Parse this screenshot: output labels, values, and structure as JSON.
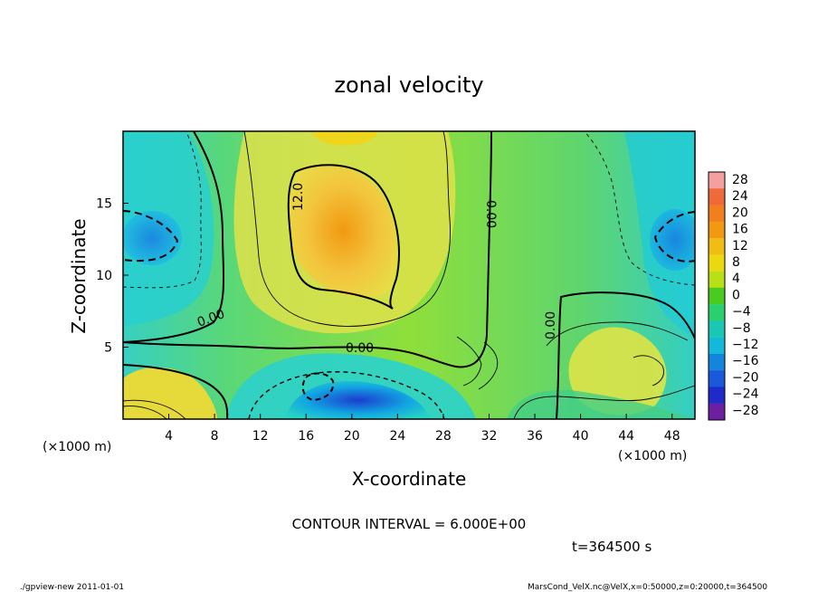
{
  "chart_data": {
    "type": "heatmap",
    "title": "zonal velocity",
    "xlabel": "X-coordinate",
    "ylabel": "Z-coordinate",
    "x_unit_left": "(×1000 m)",
    "x_unit_right": "(×1000 m)",
    "xlim": [
      0,
      50
    ],
    "ylim": [
      0,
      20
    ],
    "x_ticks": [
      4,
      8,
      12,
      16,
      20,
      24,
      28,
      32,
      36,
      40,
      44,
      48
    ],
    "y_ticks": [
      5,
      10,
      15
    ],
    "contour_labels": [
      "12.0",
      "0.00",
      "0.00",
      "0.00",
      "0.00"
    ],
    "colorbar_labels": [
      "28",
      "24",
      "20",
      "16",
      "12",
      "8",
      "4",
      "0",
      "−4",
      "−8",
      "−12",
      "−16",
      "−20",
      "−24",
      "−28"
    ],
    "colorbar_colors": [
      "#f4a0a0",
      "#ef6a3a",
      "#f17f1f",
      "#f19a11",
      "#f1bc13",
      "#ebd810",
      "#b7e017",
      "#49cc1f",
      "#2bcf6d",
      "#1ac7b4",
      "#14b8d8",
      "#1484dd",
      "#1959dc",
      "#1f2bc9",
      "#6d1fa1"
    ],
    "grid": false,
    "legend": "right colorbar"
  },
  "footer": {
    "contour_interval": "CONTOUR INTERVAL = 6.000E+00",
    "time": "t=364500 s",
    "left_info": "./gpview-new 2011-01-01",
    "right_info": "MarsCond_VelX.nc@VelX,x=0:50000,z=0:20000,t=364500"
  },
  "colors": {
    "background": "#ffffff",
    "ink": "#000000"
  }
}
